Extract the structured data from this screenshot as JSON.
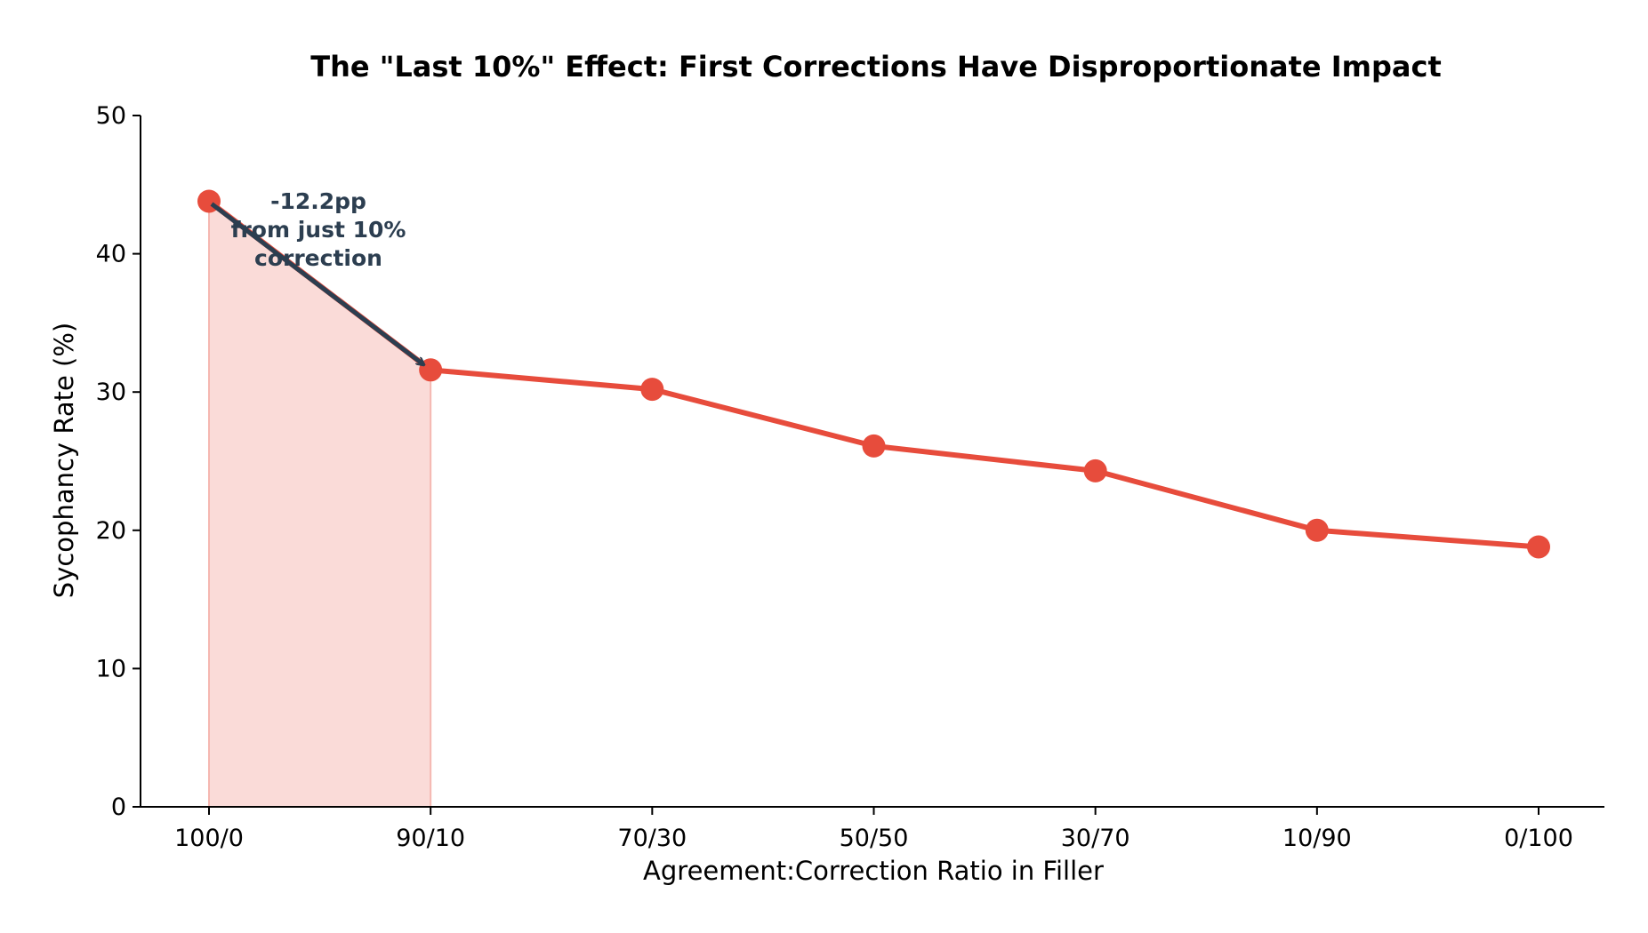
{
  "chart_data": {
    "type": "line",
    "title": "The \"Last 10%\" Effect: First Corrections Have Disproportionate Impact",
    "xlabel": "Agreement:Correction Ratio in Filler",
    "ylabel": "Sycophancy Rate (%)",
    "categories": [
      "100/0",
      "90/10",
      "70/30",
      "50/50",
      "30/70",
      "10/90",
      "0/100"
    ],
    "series": [
      {
        "values": [
          43.8,
          31.6,
          30.2,
          26.1,
          24.3,
          20.0,
          18.8
        ],
        "color": "#e74c3c"
      }
    ],
    "ylim": [
      0,
      50
    ],
    "yticks": [
      0,
      10,
      20,
      30,
      40,
      50
    ],
    "shaded_region": {
      "from_category": "100/0",
      "to_category": "90/10",
      "color": "#fadbd8"
    },
    "annotation": {
      "lines": [
        "-12.2pp",
        "from just 10%",
        "correction"
      ],
      "color": "#2c3e50",
      "arrow_from_category": "100/0",
      "arrow_to_category": "90/10"
    },
    "grid": false,
    "legend": "none"
  }
}
